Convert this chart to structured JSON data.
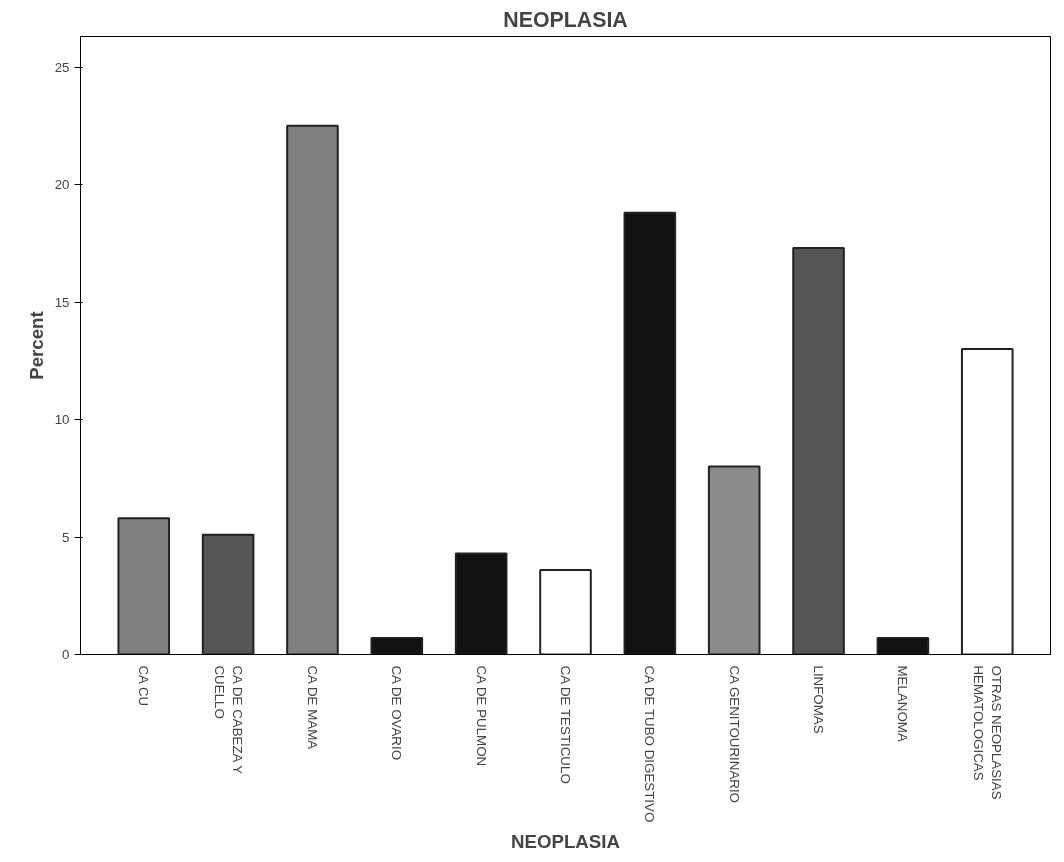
{
  "chart_data": {
    "type": "bar",
    "title": "NEOPLASIA",
    "xlabel": "NEOPLASIA",
    "ylabel": "Percent",
    "categories": [
      "CA CU",
      "CA DE CABEZA Y CUELLO",
      "CA DE MAMA",
      "CA DE OVARIO",
      "CA DE PULMON",
      "CA DE TESTICULO",
      "CA DE TUBO DIGESTIVO",
      "CA GENITOURINARIO",
      "LINFOMAS",
      "MELANOMA",
      "OTRAS NEOPLASIAS HEMATOLOGICAS"
    ],
    "values": [
      5.8,
      5.1,
      22.5,
      0.7,
      4.3,
      3.6,
      18.8,
      8.0,
      17.3,
      0.7,
      13.0
    ],
    "colors": [
      "#808080",
      "#555555",
      "#808080",
      "#111111",
      "#111111",
      "#ffffff",
      "#111111",
      "#8a8a8a",
      "#555555",
      "#111111",
      "#ffffff"
    ],
    "ylim": [
      0,
      26.3
    ],
    "yticks": [
      0,
      5,
      10,
      15,
      20,
      25
    ],
    "grid": false
  }
}
